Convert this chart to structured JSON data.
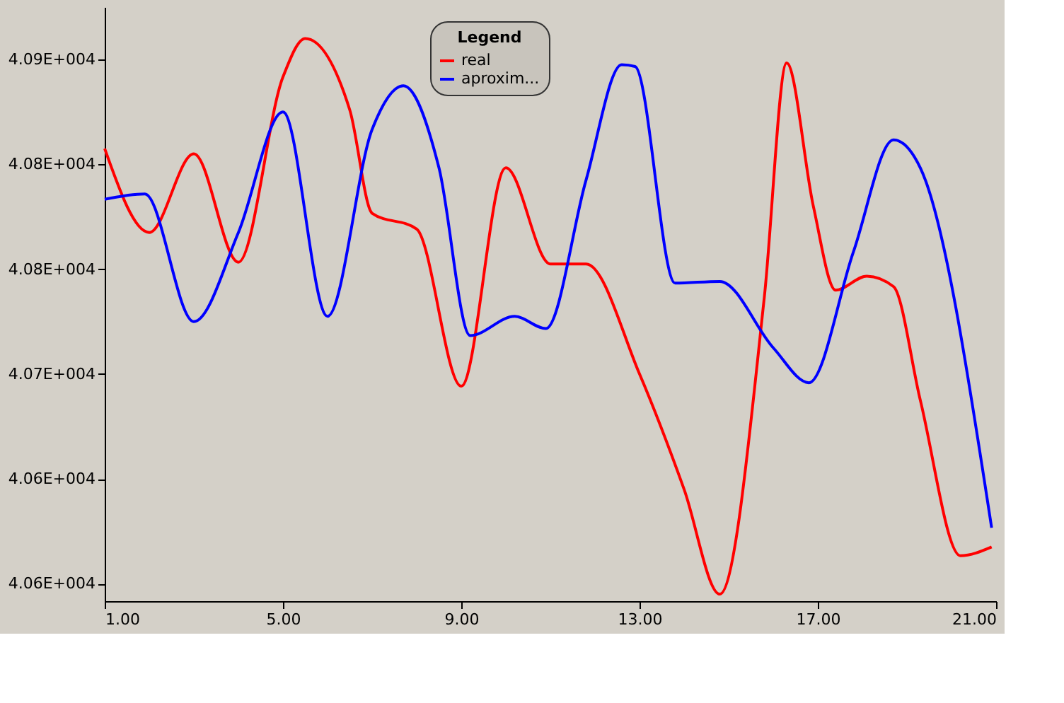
{
  "chart_data": {
    "type": "line",
    "legend_title": "Legend",
    "legend": "top",
    "grid": false,
    "marker": "none",
    "line_style": "solid",
    "xlim": [
      1,
      21
    ],
    "xticks": [
      {
        "value": 1,
        "label": "1.00"
      },
      {
        "value": 5,
        "label": "5.00"
      },
      {
        "value": 9,
        "label": "9.00"
      },
      {
        "value": 13,
        "label": "13.00"
      },
      {
        "value": 17,
        "label": "17.00"
      },
      {
        "value": 21,
        "label": "21.00"
      }
    ],
    "ylim": [
      40575,
      40915
    ],
    "yticks": [
      {
        "value": 40585,
        "label": "4.06E+004"
      },
      {
        "value": 40645,
        "label": "4.06E+004"
      },
      {
        "value": 40705,
        "label": "4.07E+004"
      },
      {
        "value": 40765,
        "label": "4.08E+004"
      },
      {
        "value": 40825,
        "label": "4.08E+004"
      },
      {
        "value": 40885,
        "label": "4.09E+004"
      }
    ],
    "series": [
      {
        "name": "real",
        "color": "#ff0000",
        "x": [
          1,
          2,
          3,
          4,
          5,
          5.5,
          6.5,
          7,
          8,
          9,
          10,
          11,
          11.8,
          13,
          14,
          14.8,
          15.8,
          16.3,
          16.9,
          17.4,
          18.1,
          18.7,
          19.3,
          20.2,
          20.9
        ],
        "values": [
          40834,
          40786,
          40831,
          40769,
          40875,
          40897,
          40856,
          40797,
          40788,
          40698,
          40823,
          40768,
          40768,
          40705,
          40639,
          40579,
          40749,
          40883,
          40801,
          40753,
          40761,
          40755,
          40690,
          40601,
          40606
        ]
      },
      {
        "name": "aproxim...",
        "color": "#0000ff",
        "x": [
          1,
          1.9,
          3,
          4,
          5,
          6,
          7,
          7.7,
          8.5,
          9.2,
          10.2,
          10.9,
          11.8,
          12.6,
          12.9,
          13.8,
          14.8,
          16,
          16.8,
          17.8,
          18.7,
          19.3,
          20.9
        ],
        "values": [
          40805,
          40808,
          40735,
          40786,
          40855,
          40738,
          40845,
          40870,
          40823,
          40727,
          40738,
          40731,
          40816,
          40882,
          40881,
          40757,
          40758,
          40720,
          40700,
          40775,
          40839,
          40823,
          40617
        ]
      }
    ]
  }
}
